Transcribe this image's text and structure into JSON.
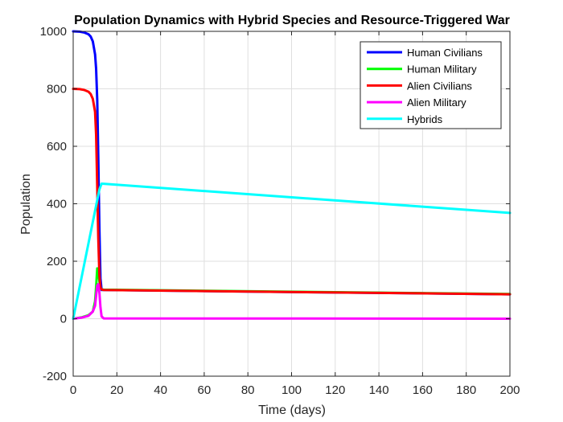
{
  "chart_data": {
    "type": "line",
    "title": "Population Dynamics with Hybrid Species and Resource-Triggered War",
    "xlabel": "Time (days)",
    "ylabel": "Population",
    "xlim": [
      0,
      200
    ],
    "ylim": [
      -200,
      1000
    ],
    "xticks": [
      0,
      20,
      40,
      60,
      80,
      100,
      120,
      140,
      160,
      180,
      200
    ],
    "yticks": [
      -200,
      0,
      200,
      400,
      600,
      800,
      1000
    ],
    "xtick_labels": [
      "0",
      "20",
      "40",
      "60",
      "80",
      "100",
      "120",
      "140",
      "160",
      "180",
      "200"
    ],
    "ytick_labels": [
      "-200",
      "0",
      "200",
      "400",
      "600",
      "800",
      "1000"
    ],
    "grid": true,
    "box": true,
    "legend_position": "top-right",
    "series": [
      {
        "name": "Human Civilians",
        "color": "#0000ff",
        "x": [
          0,
          3,
          5,
          7,
          8,
          9,
          10,
          10.5,
          11,
          11.5,
          12,
          12.5,
          13,
          14,
          200
        ],
        "y": [
          1000,
          999,
          996,
          990,
          982,
          965,
          920,
          870,
          760,
          560,
          310,
          140,
          100,
          100,
          85
        ]
      },
      {
        "name": "Human Military",
        "color": "#00ff00",
        "x": [
          0,
          4,
          7,
          9,
          10,
          10.5,
          11,
          11.5,
          12,
          12.5,
          13,
          14,
          200
        ],
        "y": [
          0,
          5,
          12,
          25,
          60,
          110,
          175,
          165,
          130,
          108,
          102,
          101,
          86
        ]
      },
      {
        "name": "Alien Civilians",
        "color": "#ff0000",
        "x": [
          0,
          3,
          5,
          7,
          8,
          9,
          10,
          10.5,
          11,
          11.5,
          12,
          12.5,
          13,
          14,
          200
        ],
        "y": [
          800,
          799,
          796,
          790,
          782,
          765,
          720,
          640,
          460,
          280,
          150,
          108,
          102,
          100,
          85
        ]
      },
      {
        "name": "Alien Military",
        "color": "#ff00ff",
        "x": [
          0,
          4,
          7,
          9,
          10,
          10.5,
          11,
          11.5,
          12,
          12.5,
          13,
          14,
          200
        ],
        "y": [
          0,
          4,
          10,
          25,
          45,
          80,
          115,
          120,
          90,
          40,
          8,
          1,
          0
        ]
      },
      {
        "name": "Hybrids",
        "color": "#00ffff",
        "x": [
          0,
          12,
          13,
          200
        ],
        "y": [
          0,
          450,
          470,
          368
        ]
      }
    ]
  }
}
